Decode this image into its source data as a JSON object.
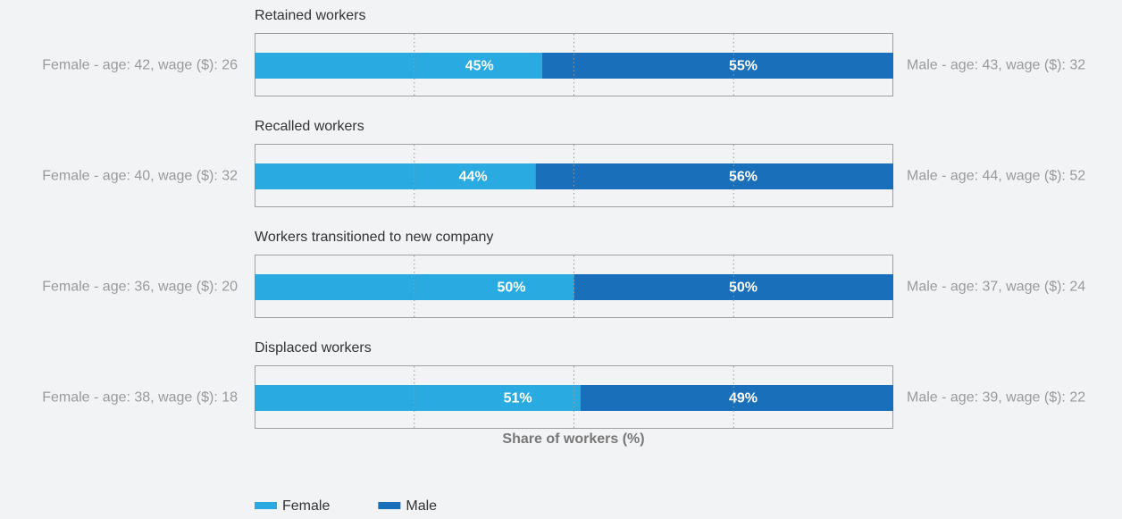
{
  "chart_data": {
    "type": "bar",
    "orientation": "horizontal",
    "stacked": true,
    "categories": [
      "Retained workers",
      "Recalled workers",
      "Workers transitioned to new company",
      "Displaced workers"
    ],
    "left_labels": [
      "Female - age: 42, wage ($): 26",
      "Female - age: 40, wage ($): 32",
      "Female - age: 36, wage ($): 20",
      "Female - age: 38, wage ($): 18"
    ],
    "right_labels": [
      "Male - age: 43, wage ($): 32",
      "Male - age: 44, wage ($): 52",
      "Male - age: 37, wage ($): 24",
      "Male - age: 39, wage ($): 22"
    ],
    "series": [
      {
        "name": "Female",
        "color": "#29abe2",
        "values": [
          45,
          44,
          50,
          51
        ],
        "value_labels": [
          "45%",
          "44%",
          "50%",
          "51%"
        ]
      },
      {
        "name": "Male",
        "color": "#1a6fba",
        "values": [
          55,
          56,
          50,
          49
        ],
        "value_labels": [
          "55%",
          "56%",
          "50%",
          "49%"
        ]
      }
    ],
    "xlabel": "Share of workers (%)",
    "xlim": [
      0,
      100
    ],
    "xticks": [
      25,
      50,
      75
    ],
    "grid": true
  }
}
